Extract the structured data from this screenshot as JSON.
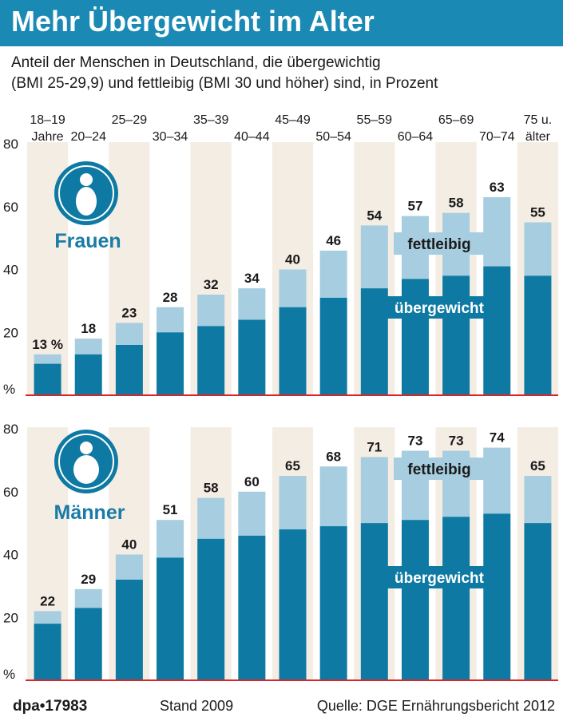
{
  "title": "Mehr Übergewicht im Alter",
  "subtitle_line1": "Anteil der Menschen in Deutschland, die übergewichtig",
  "subtitle_line2": "(BMI 25-29,9) und fettleibig (BMI 30 und höher) sind, in Prozent",
  "footer": {
    "logo": "dpa•17983",
    "stand": "Stand 2009",
    "source": "Quelle: DGE Ernährungsbericht 2012"
  },
  "colors": {
    "title_bar": "#1a8ab5",
    "overweight": "#0e7aa3",
    "obese": "#a6cde0",
    "stripe": "#f4ede4",
    "baseline": "#d9262d",
    "panel_label": "#1a7ba6"
  },
  "icon_name": "person-silhouette-icon",
  "chart_data": [
    {
      "type": "bar",
      "stacked": true,
      "panel_label": "Frauen",
      "categories": [
        "18–19 Jahre",
        "20–24",
        "25–29",
        "30–34",
        "35–39",
        "40–44",
        "45–49",
        "50–54",
        "55–59",
        "60–64",
        "65–69",
        "70–74",
        "75 u. älter"
      ],
      "category_top_lines": [
        "18–19",
        "",
        "25–29",
        "",
        "35–39",
        "",
        "45–49",
        "",
        "55–59",
        "",
        "65–69",
        "",
        "75 u."
      ],
      "category_bottom_lines": [
        "Jahre",
        "20–24",
        "",
        "30–34",
        "",
        "40–44",
        "",
        "50–54",
        "",
        "60–64",
        "",
        "70–74",
        "älter"
      ],
      "totals": [
        13,
        18,
        23,
        28,
        32,
        34,
        40,
        46,
        54,
        57,
        58,
        63,
        55
      ],
      "total_labels": [
        "13 %",
        "18",
        "23",
        "28",
        "32",
        "34",
        "40",
        "46",
        "54",
        "57",
        "58",
        "63",
        "55"
      ],
      "series": [
        {
          "name": "übergewicht",
          "values": [
            10,
            13,
            16,
            20,
            22,
            24,
            28,
            31,
            34,
            37,
            38,
            41,
            38
          ]
        },
        {
          "name": "fettleibig",
          "values": [
            3,
            5,
            7,
            8,
            10,
            10,
            12,
            15,
            20,
            20,
            20,
            22,
            17
          ]
        }
      ],
      "y_ticks": [
        "80",
        "60",
        "40",
        "20",
        "%"
      ],
      "ylim": [
        0,
        80
      ],
      "grid": false
    },
    {
      "type": "bar",
      "stacked": true,
      "panel_label": "Männer",
      "categories": [
        "18–19 Jahre",
        "20–24",
        "25–29",
        "30–34",
        "35–39",
        "40–44",
        "45–49",
        "50–54",
        "55–59",
        "60–64",
        "65–69",
        "70–74",
        "75 u. älter"
      ],
      "totals": [
        22,
        29,
        40,
        51,
        58,
        60,
        65,
        68,
        71,
        73,
        73,
        74,
        65
      ],
      "total_labels": [
        "22",
        "29",
        "40",
        "51",
        "58",
        "60",
        "65",
        "68",
        "71",
        "73",
        "73",
        "74",
        "65"
      ],
      "series": [
        {
          "name": "übergewicht",
          "values": [
            18,
            23,
            32,
            39,
            45,
            46,
            48,
            49,
            50,
            51,
            52,
            53,
            50
          ]
        },
        {
          "name": "fettleibig",
          "values": [
            4,
            6,
            8,
            12,
            13,
            14,
            17,
            19,
            21,
            22,
            21,
            21,
            15
          ]
        }
      ],
      "y_ticks": [
        "80",
        "60",
        "40",
        "20",
        "%"
      ],
      "ylim": [
        0,
        80
      ],
      "grid": false
    }
  ]
}
